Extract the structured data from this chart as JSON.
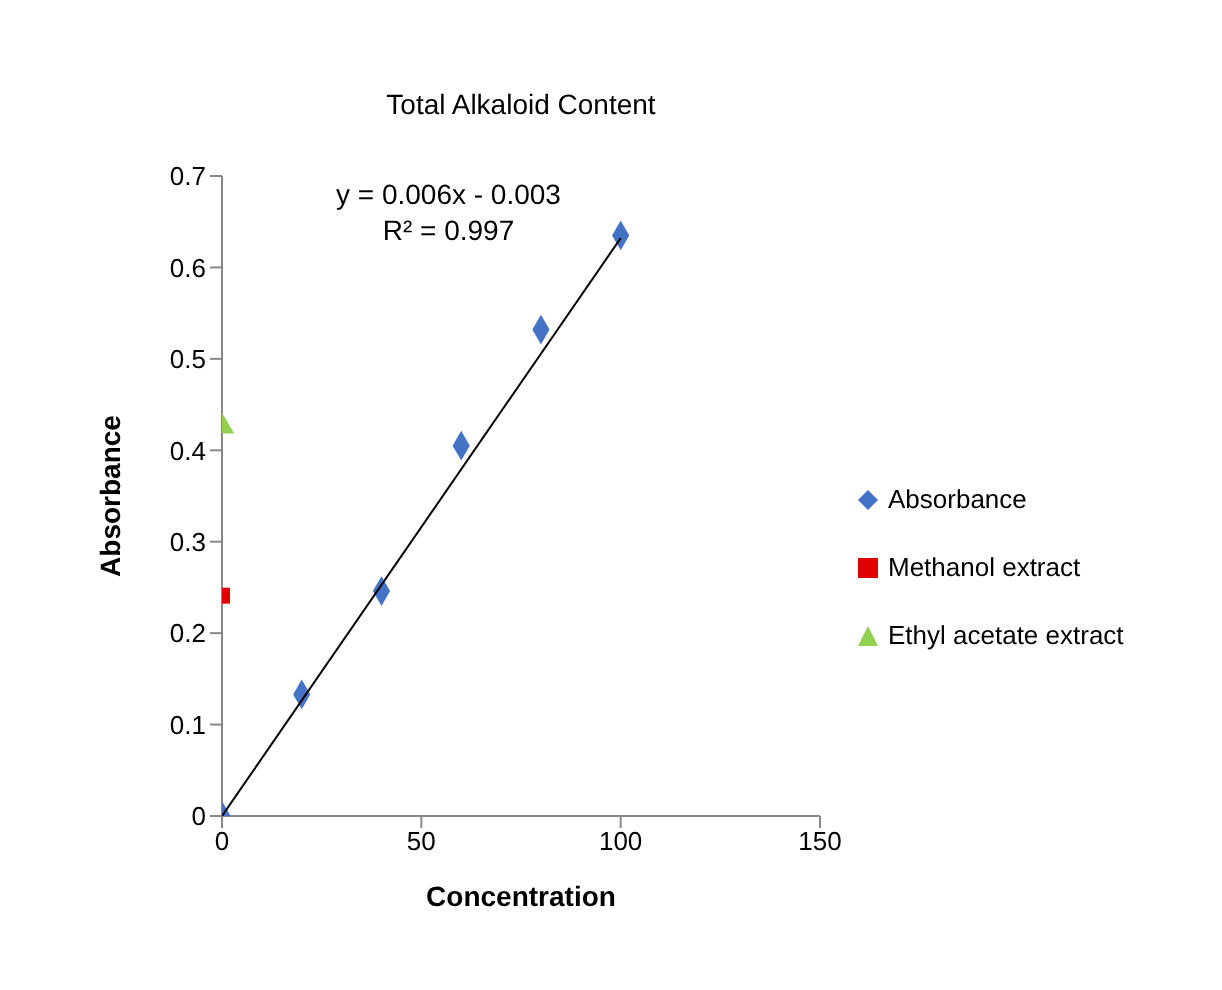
{
  "chart_data": {
    "type": "scatter",
    "title": "Total Alkaloid Content",
    "xlabel": "Concentration",
    "ylabel": "Absorbance",
    "xlim": [
      0,
      150
    ],
    "xticks": [
      0,
      50,
      100,
      150
    ],
    "ylim": [
      0,
      0.7
    ],
    "yticks": [
      0,
      0.1,
      0.2,
      0.3,
      0.4,
      0.5,
      0.6,
      0.7
    ],
    "grid": false,
    "legend": "right",
    "annotations": [
      "y = 0.006x - 0.003",
      "R² = 0.997"
    ],
    "series": [
      {
        "name": "Absorbance",
        "color": "#4472c4",
        "marker": "diamond",
        "x": [
          0,
          20,
          40,
          60,
          80,
          100
        ],
        "values": [
          0,
          0.133,
          0.246,
          0.405,
          0.532,
          0.635
        ]
      },
      {
        "name": "Methanol extract",
        "color": "#e00000",
        "marker": "square",
        "x": [
          0
        ],
        "values": [
          0.241
        ]
      },
      {
        "name": "Ethyl acetate extract",
        "color": "#92d050",
        "marker": "triangle",
        "x": [
          0
        ],
        "values": [
          0.426
        ]
      },
      {
        "type": "line",
        "color": "#000000",
        "marker": "none",
        "x": [
          0,
          100
        ],
        "values": [
          0,
          0.632
        ]
      }
    ]
  }
}
